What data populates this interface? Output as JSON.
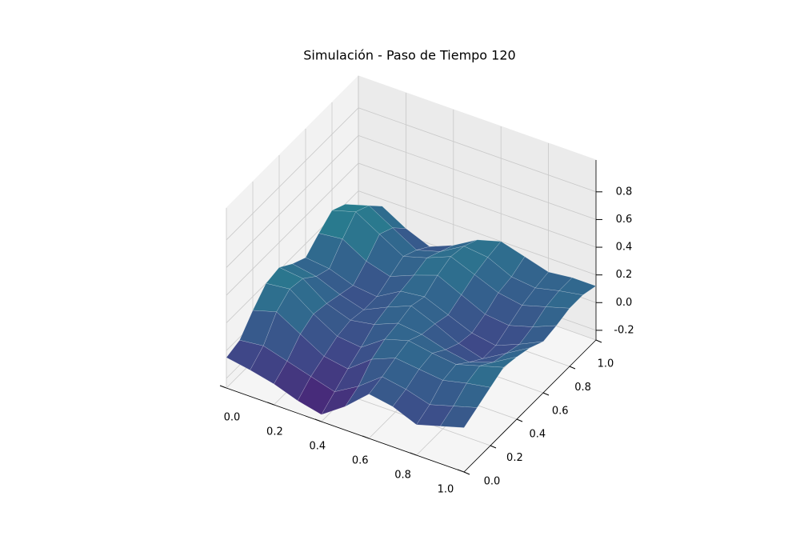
{
  "chart_data": {
    "type": "surface",
    "title": "Simulación - Paso de Tiempo 120",
    "x": [
      0,
      0.1,
      0.2,
      0.3,
      0.4,
      0.5,
      0.6,
      0.7,
      0.8,
      0.9,
      1
    ],
    "y": [
      0,
      0.1,
      0.2,
      0.3,
      0.4,
      0.5,
      0.6,
      0.7,
      0.8,
      0.9,
      1
    ],
    "z": [
      [
        -0.05,
        -0.08,
        -0.12,
        -0.18,
        -0.22,
        -0.1,
        0.05,
        0.02,
        -0.05,
        0.0,
        0.05
      ],
      [
        -0.02,
        0.0,
        -0.05,
        -0.1,
        -0.15,
        -0.05,
        0.08,
        0.05,
        0.0,
        0.05,
        0.1
      ],
      [
        0.1,
        0.15,
        0.05,
        -0.05,
        -0.08,
        0.05,
        0.12,
        0.1,
        0.08,
        0.12,
        0.15
      ],
      [
        0.2,
        0.22,
        0.1,
        0.0,
        -0.02,
        0.1,
        0.15,
        0.12,
        0.1,
        0.15,
        0.2
      ],
      [
        0.22,
        0.2,
        0.08,
        0.02,
        0.05,
        0.12,
        0.1,
        0.05,
        0.02,
        0.08,
        0.18
      ],
      [
        0.15,
        0.12,
        0.05,
        0.0,
        0.08,
        0.15,
        0.08,
        0.0,
        -0.05,
        0.05,
        0.15
      ],
      [
        0.1,
        0.08,
        0.02,
        0.0,
        0.1,
        0.12,
        0.05,
        -0.02,
        -0.05,
        0.02,
        0.1
      ],
      [
        0.18,
        0.2,
        0.1,
        0.05,
        0.12,
        0.18,
        0.1,
        0.02,
        0.0,
        0.05,
        0.12
      ],
      [
        0.25,
        0.3,
        0.2,
        0.1,
        0.15,
        0.22,
        0.15,
        0.08,
        0.05,
        0.1,
        0.15
      ],
      [
        0.2,
        0.25,
        0.15,
        0.05,
        0.1,
        0.2,
        0.18,
        0.1,
        0.08,
        0.12,
        0.15
      ],
      [
        0.1,
        0.15,
        0.05,
        -0.02,
        0.05,
        0.15,
        0.2,
        0.15,
        0.1,
        0.12,
        0.12
      ]
    ],
    "colormap": "viridis",
    "xlim": [
      0,
      1
    ],
    "ylim": [
      0,
      1
    ],
    "zlim": [
      -0.27,
      1.03
    ],
    "xticks": [
      {
        "value": 0,
        "label": "0.0"
      },
      0.2,
      0.4,
      0.6,
      0.8,
      {
        "value": 1,
        "label": "1.0"
      }
    ],
    "yticks": [
      {
        "value": 0,
        "label": "0.0"
      },
      0.2,
      0.4,
      0.6,
      0.8,
      {
        "value": 1,
        "label": "1.0"
      }
    ],
    "zticks": [
      -0.2,
      {
        "value": 0,
        "label": "0.0"
      },
      0.2,
      0.4,
      0.6,
      0.8
    ],
    "grid": true
  }
}
